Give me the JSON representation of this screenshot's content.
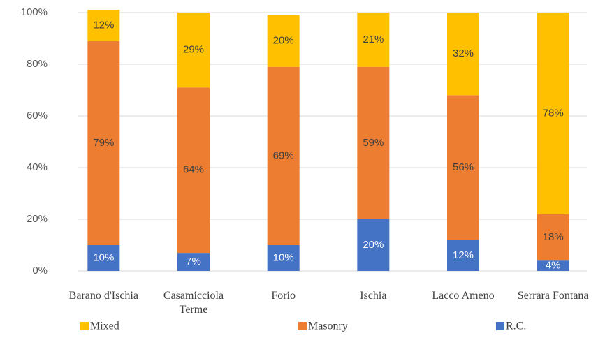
{
  "chart_data": {
    "type": "stacked_bar",
    "categories": [
      "Barano d'Ischia",
      "Casamicciola Terme",
      "Forio",
      "Ischia",
      "Lacco Ameno",
      "Serrara Fontana"
    ],
    "series": [
      {
        "name": "R.C.",
        "color": "#4472c4",
        "values": [
          10,
          7,
          10,
          20,
          12,
          4
        ],
        "value_labels": [
          "10%",
          "7%",
          "10%",
          "20%",
          "12%",
          "4%"
        ]
      },
      {
        "name": "Masonry",
        "color": "#ed7d31",
        "values": [
          79,
          64,
          69,
          59,
          56,
          18
        ],
        "value_labels": [
          "79%",
          "64%",
          "69%",
          "59%",
          "56%",
          "18%"
        ]
      },
      {
        "name": "Mixed",
        "color": "#ffc000",
        "values": [
          12,
          29,
          20,
          21,
          32,
          78
        ],
        "value_labels": [
          "12%",
          "29%",
          "20%",
          "21%",
          "32%",
          "78%"
        ]
      }
    ],
    "ylim": [
      0,
      100
    ],
    "yticks": [
      {
        "value": 0,
        "label": "0%"
      },
      {
        "value": 20,
        "label": "20%"
      },
      {
        "value": 40,
        "label": "40%"
      },
      {
        "value": 60,
        "label": "60%"
      },
      {
        "value": 80,
        "label": "80%"
      },
      {
        "value": 100,
        "label": "100%"
      }
    ],
    "grid": true,
    "legend": "bottom"
  }
}
